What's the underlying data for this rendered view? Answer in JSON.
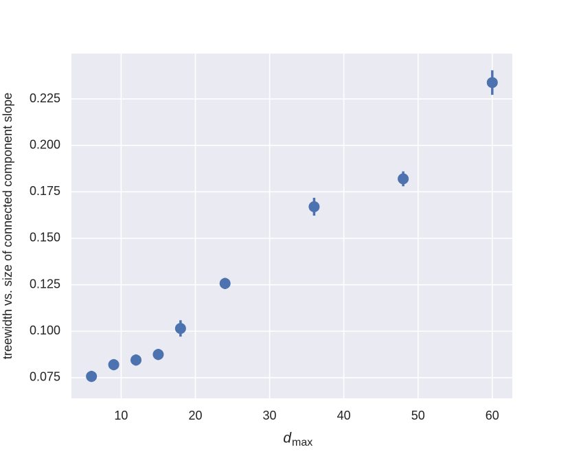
{
  "chart_data": {
    "type": "scatter",
    "x_label": "d",
    "x_label_sub": "max",
    "y_label": "treewidth vs. size of connected component slope",
    "series": [
      {
        "color": "#4c72b0",
        "x": [
          6,
          9,
          12,
          15,
          18,
          24,
          36,
          48,
          60
        ],
        "values": [
          0.0757,
          0.082,
          0.0845,
          0.0875,
          0.1015,
          0.1257,
          0.167,
          0.182,
          0.2338
        ],
        "errors": [
          0.003,
          0.003,
          0.003,
          0.003,
          0.0044,
          0.003,
          0.0048,
          0.004,
          0.0066
        ]
      }
    ],
    "xlim": [
      3.3,
      62.7
    ],
    "xticks": [
      10,
      20,
      30,
      40,
      50,
      60
    ],
    "ylim": [
      0.0639,
      0.2494
    ],
    "yticks": [
      0.075,
      0.1,
      0.125,
      0.15,
      0.175,
      0.2,
      0.225
    ],
    "ytick_labels": [
      "0.075",
      "0.100",
      "0.125",
      "0.150",
      "0.175",
      "0.200",
      "0.225"
    ],
    "grid": true
  }
}
